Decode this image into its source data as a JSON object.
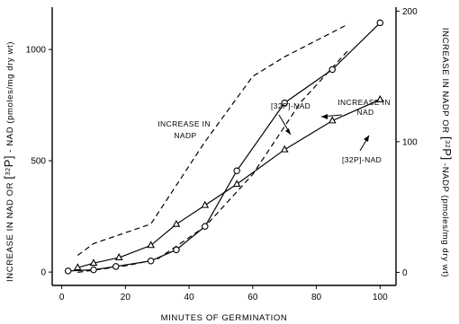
{
  "chart_data": {
    "type": "line",
    "xlabel": "MINUTES OF GERMINATION",
    "ylabel_left_parts": [
      "INCREASE IN NAD OR ",
      "[",
      "32",
      "P]",
      " - NAD (pmoles/mg dry wt)"
    ],
    "ylabel_right_parts": [
      "INCREASE IN NADP OR ",
      "[",
      "32",
      "P]",
      " -NADP (pmoles/mg dry wt)"
    ],
    "x_ticks": [
      0,
      20,
      40,
      60,
      80,
      100
    ],
    "y_left_ticks": [
      0,
      500,
      1000
    ],
    "y_right_ticks": [
      0,
      100,
      200
    ],
    "xlim": [
      -3,
      105
    ],
    "ylim_left": [
      -60,
      1190
    ],
    "ylim_right": [
      -10,
      203
    ],
    "series": [
      {
        "axis": "left",
        "marker": "circle",
        "style": "solid",
        "x": [
          2,
          10,
          17,
          28,
          36,
          45,
          55,
          70,
          85,
          100
        ],
        "y": [
          5,
          10,
          25,
          50,
          100,
          205,
          455,
          760,
          910,
          1120
        ]
      },
      {
        "axis": "left",
        "marker": "triangle",
        "style": "solid",
        "x": [
          5,
          10,
          18,
          28,
          36,
          45,
          55,
          70,
          85,
          100
        ],
        "y": [
          20,
          40,
          65,
          120,
          215,
          300,
          395,
          550,
          680,
          775
        ]
      },
      {
        "axis": "right",
        "marker": "none",
        "style": "dashed",
        "x": [
          5,
          10,
          28,
          45,
          60,
          70,
          90
        ],
        "y": [
          13,
          22,
          37,
          100,
          150,
          165,
          190
        ]
      },
      {
        "axis": "right",
        "marker": "none",
        "style": "dashed",
        "x": [
          5,
          20,
          30,
          45,
          60,
          75,
          90
        ],
        "y": [
          0,
          5,
          10,
          35,
          75,
          130,
          170
        ]
      }
    ],
    "annotations": [
      {
        "lines": [
          "INCREASE IN",
          "NADP"
        ]
      },
      {
        "lines": [
          "[32P]-NAD"
        ]
      },
      {
        "lines": [
          "INCREASE IN",
          "NAD"
        ]
      },
      {
        "lines": [
          "[32P]-NAD"
        ]
      }
    ]
  }
}
